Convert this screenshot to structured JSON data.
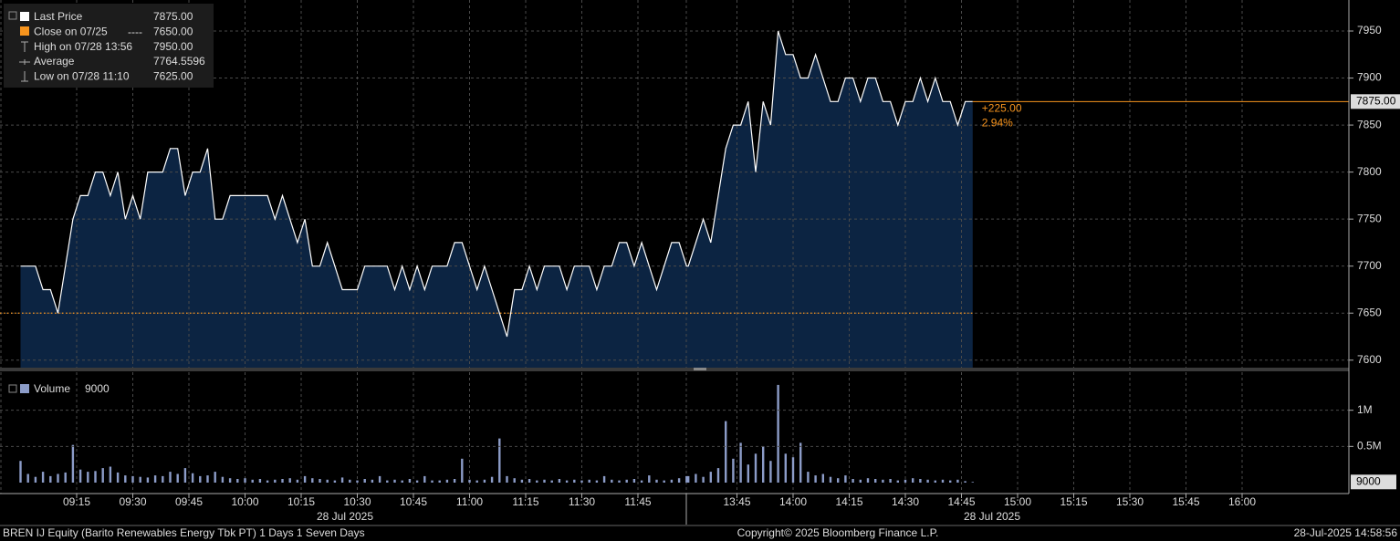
{
  "chart_data": [
    {
      "type": "area",
      "x": [
        "09:00",
        "09:02",
        "09:04",
        "09:06",
        "09:08",
        "09:10",
        "09:12",
        "09:14",
        "09:16",
        "09:18",
        "09:20",
        "09:22",
        "09:24",
        "09:26",
        "09:28",
        "09:30",
        "09:32",
        "09:34",
        "09:36",
        "09:38",
        "09:40",
        "09:42",
        "09:44",
        "09:46",
        "09:48",
        "09:50",
        "09:52",
        "09:54",
        "09:56",
        "09:58",
        "10:00",
        "10:02",
        "10:04",
        "10:06",
        "10:08",
        "10:10",
        "10:12",
        "10:14",
        "10:16",
        "10:18",
        "10:20",
        "10:22",
        "10:24",
        "10:26",
        "10:28",
        "10:30",
        "10:32",
        "10:34",
        "10:36",
        "10:38",
        "10:40",
        "10:42",
        "10:44",
        "10:46",
        "10:48",
        "10:50",
        "10:52",
        "10:54",
        "10:56",
        "10:58",
        "11:00",
        "11:02",
        "11:04",
        "11:06",
        "11:08",
        "11:10",
        "11:12",
        "11:14",
        "11:16",
        "11:18",
        "11:20",
        "11:22",
        "11:24",
        "11:26",
        "11:28",
        "11:30",
        "11:32",
        "11:34",
        "11:36",
        "11:38",
        "11:40",
        "11:42",
        "11:44",
        "11:46",
        "11:48",
        "11:50",
        "11:52",
        "11:54",
        "11:56",
        "11:58",
        "13:32",
        "13:34",
        "13:36",
        "13:38",
        "13:40",
        "13:42",
        "13:44",
        "13:46",
        "13:48",
        "13:50",
        "13:52",
        "13:54",
        "13:56",
        "13:58",
        "14:00",
        "14:02",
        "14:04",
        "14:06",
        "14:08",
        "14:10",
        "14:12",
        "14:14",
        "14:16",
        "14:18",
        "14:20",
        "14:22",
        "14:24",
        "14:26",
        "14:28",
        "14:30",
        "14:32",
        "14:34",
        "14:36",
        "14:38",
        "14:40",
        "14:42",
        "14:44",
        "14:46",
        "14:48"
      ],
      "values": [
        7700,
        7700,
        7700,
        7675,
        7675,
        7650,
        7700,
        7750,
        7775,
        7775,
        7800,
        7800,
        7775,
        7800,
        7750,
        7775,
        7750,
        7800,
        7800,
        7800,
        7825,
        7825,
        7775,
        7800,
        7800,
        7825,
        7750,
        7750,
        7775,
        7775,
        7775,
        7775,
        7775,
        7775,
        7750,
        7775,
        7750,
        7725,
        7750,
        7700,
        7700,
        7725,
        7700,
        7675,
        7675,
        7675,
        7700,
        7700,
        7700,
        7700,
        7675,
        7700,
        7675,
        7700,
        7675,
        7700,
        7700,
        7700,
        7725,
        7725,
        7700,
        7675,
        7700,
        7675,
        7650,
        7625,
        7675,
        7675,
        7700,
        7675,
        7700,
        7700,
        7700,
        7675,
        7700,
        7700,
        7700,
        7675,
        7700,
        7700,
        7725,
        7725,
        7700,
        7725,
        7700,
        7675,
        7700,
        7725,
        7725,
        7700,
        7700,
        7725,
        7750,
        7725,
        7775,
        7825,
        7850,
        7850,
        7875,
        7800,
        7875,
        7850,
        7950,
        7925,
        7925,
        7900,
        7900,
        7925,
        7900,
        7875,
        7875,
        7900,
        7900,
        7875,
        7900,
        7900,
        7875,
        7875,
        7850,
        7875,
        7875,
        7900,
        7875,
        7900,
        7875,
        7875,
        7850,
        7875,
        7875
      ],
      "color": "#ffffff",
      "fill": "#0c2442",
      "ylim": [
        7592,
        7983
      ],
      "yticks": [
        7600,
        7650,
        7700,
        7750,
        7800,
        7850,
        7900,
        7950
      ],
      "xticks": [
        "09:15",
        "09:30",
        "09:45",
        "10:00",
        "10:15",
        "10:30",
        "10:45",
        "11:00",
        "11:15",
        "11:30",
        "11:45",
        "13:45",
        "14:00",
        "14:15",
        "14:30",
        "14:45",
        "15:00",
        "15:15",
        "15:30",
        "15:45",
        "16:00"
      ],
      "session_labels": [
        "28 Jul 2025",
        "28 Jul 2025"
      ],
      "grid": true,
      "legend": {
        "names": [
          "Last Price",
          "Close on 07/25",
          "High on 07/28 13:56",
          "Average",
          "Low on 07/28 11:10"
        ],
        "values": [
          7875,
          7650,
          7950,
          7764.5596,
          7625
        ],
        "value_labels": [
          "7875.00",
          "7650.00",
          "7950.00",
          "7764.5596",
          "7625.00"
        ],
        "colors": [
          "#ffffff",
          "#f7941d",
          "#bbbbbb",
          "#bbbbbb",
          "#bbbbbb"
        ]
      },
      "change": {
        "values": [
          225,
          2.94
        ],
        "value_labels": [
          "+225.00",
          "2.94%"
        ],
        "color": "#f7941d"
      },
      "footer": {
        "left": "BREN IJ Equity (Barito Renewables Energy Tbk PT) 1 Days 1 Seven Days",
        "center": "Copyright© 2025 Bloomberg Finance L.P.",
        "right": "28-Jul-2025 14:58:56"
      }
    },
    {
      "type": "bar",
      "series": [
        {
          "name": "Volume",
          "color": "#8c9cc8",
          "values": [
            300000,
            120000,
            80000,
            150000,
            90000,
            120000,
            140000,
            520000,
            180000,
            150000,
            160000,
            200000,
            220000,
            140000,
            100000,
            90000,
            80000,
            70000,
            100000,
            90000,
            150000,
            120000,
            200000,
            130000,
            90000,
            100000,
            150000,
            80000,
            60000,
            50000,
            60000,
            40000,
            50000,
            30000,
            40000,
            50000,
            60000,
            40000,
            90000,
            60000,
            50000,
            40000,
            30000,
            70000,
            40000,
            30000,
            50000,
            40000,
            90000,
            30000,
            40000,
            30000,
            50000,
            30000,
            90000,
            30000,
            30000,
            40000,
            50000,
            330000,
            40000,
            30000,
            40000,
            80000,
            610000,
            90000,
            60000,
            40000,
            50000,
            30000,
            40000,
            30000,
            50000,
            30000,
            40000,
            30000,
            40000,
            30000,
            90000,
            40000,
            30000,
            40000,
            50000,
            30000,
            100000,
            40000,
            30000,
            40000,
            60000,
            90000,
            90000,
            120000,
            80000,
            150000,
            200000,
            850000,
            330000,
            550000,
            250000,
            400000,
            500000,
            300000,
            1350000,
            400000,
            350000,
            550000,
            150000,
            100000,
            120000,
            80000,
            60000,
            100000,
            50000,
            40000,
            60000,
            50000,
            40000,
            50000,
            30000,
            40000,
            60000,
            50000,
            40000,
            30000,
            40000,
            30000,
            40000,
            20000,
            9000
          ]
        }
      ],
      "ylim": [
        0,
        1500000
      ],
      "yticks": [
        {
          "value": 500000,
          "label": "0.5M"
        },
        {
          "value": 1000000,
          "label": "1M"
        }
      ],
      "grid": true
    }
  ]
}
